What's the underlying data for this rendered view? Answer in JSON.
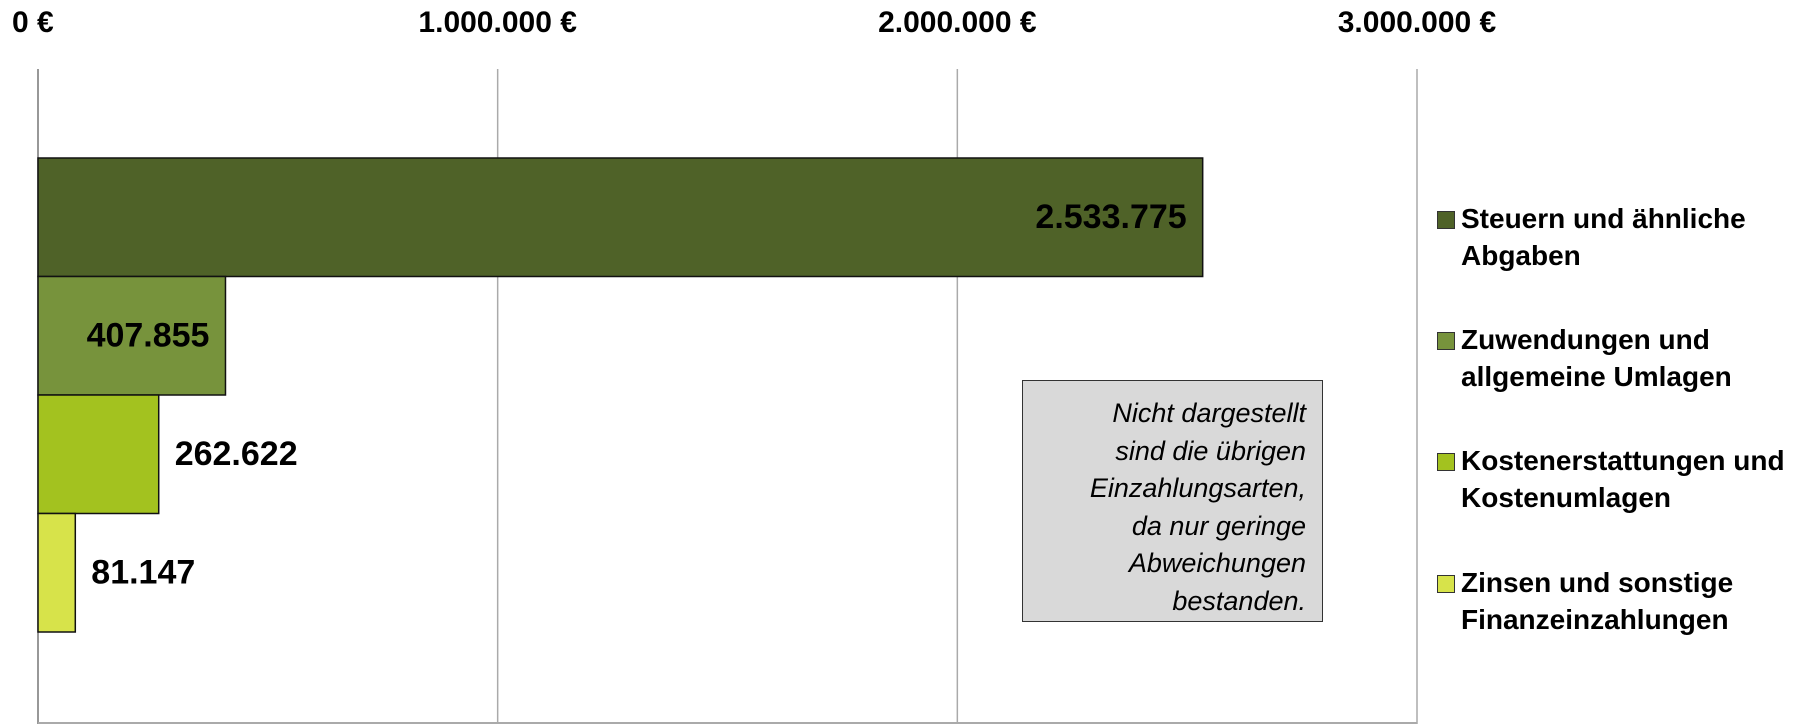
{
  "chart_data": {
    "type": "bar",
    "orientation": "horizontal",
    "categories": [
      "Steuern und ähnliche Abgaben",
      "Zuwendungen und allgemeine Umlagen",
      "Kostenerstattungen und Kostenumlagen",
      "Zinsen und sonstige Finanzeinzahlungen"
    ],
    "values": [
      2533775,
      407855,
      262622,
      81147
    ],
    "value_labels": [
      "2.533.775",
      "407.855",
      "262.622",
      "81.147"
    ],
    "colors": [
      "#4f6228",
      "#77933c",
      "#a3c21f",
      "#d7e34a"
    ],
    "xlim": [
      0,
      3000000
    ],
    "xticks": [
      {
        "value": 0,
        "label": "0 €"
      },
      {
        "value": 1000000,
        "label": "1.000.000 €"
      },
      {
        "value": 2000000,
        "label": "2.000.000 €"
      },
      {
        "value": 3000000,
        "label": "3.000.000 €"
      }
    ],
    "grid": true,
    "legend": "right",
    "annotation": [
      "Nicht dargestellt",
      "sind die übrigen",
      "Einzahlungsarten,",
      "da nur geringe",
      "Abweichungen",
      "bestanden."
    ]
  }
}
